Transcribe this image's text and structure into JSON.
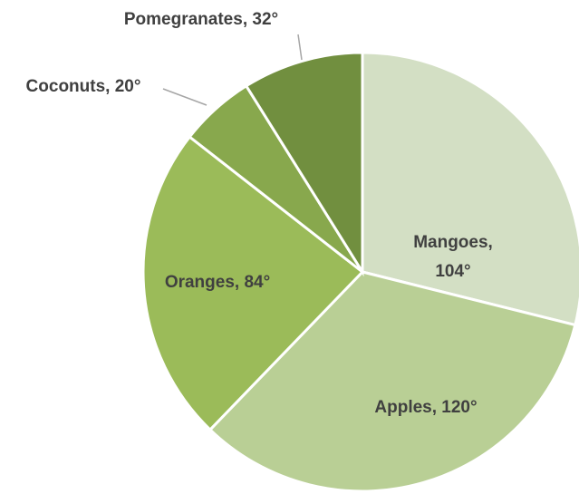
{
  "chart_data": {
    "type": "pie",
    "values": [
      104,
      120,
      84,
      20,
      32
    ],
    "value_labels": [
      "Mangoes, 104°",
      "Apples, 120°",
      "Oranges, 84°",
      "Coconuts, 20°",
      "Pomegranates, 32°"
    ],
    "colors": [
      "#d3dfc4",
      "#b9cf95",
      "#9bbb59",
      "#88a84d",
      "#718f3f"
    ]
  }
}
